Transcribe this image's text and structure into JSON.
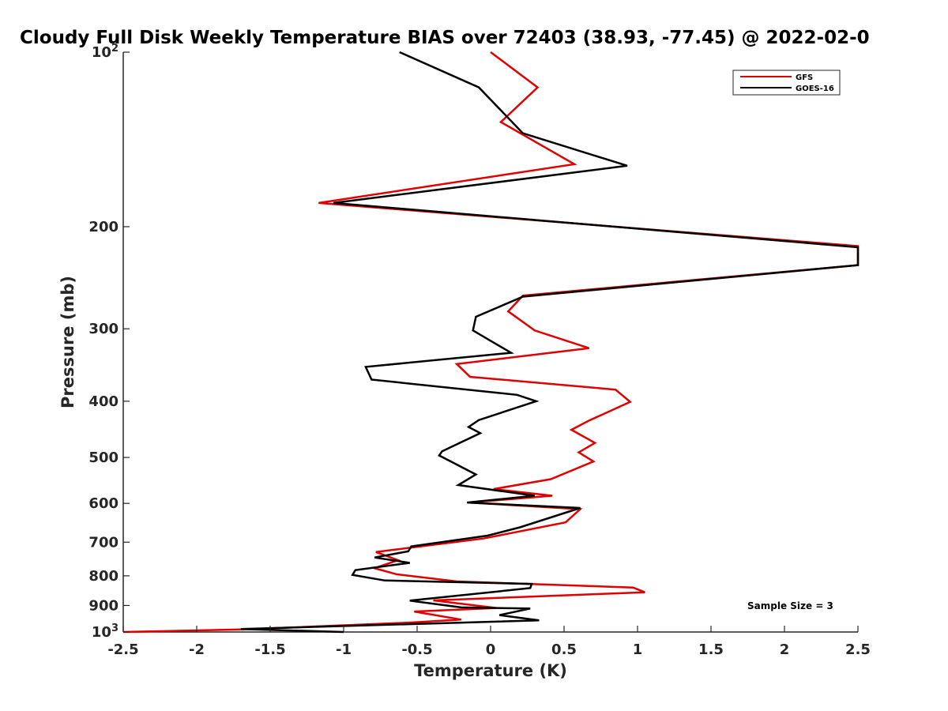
{
  "chart_data": {
    "type": "line",
    "title": "Cloudy Full Disk Weekly Temperature BIAS over 72403 (38.93, -77.45) @ 2022-02-0",
    "xlabel": "Temperature (K)",
    "ylabel": "Pressure (mb)",
    "xlim": [
      -2.5,
      2.5
    ],
    "ylim": [
      100,
      1000
    ],
    "y_scale": "log-reversed",
    "x_ticks": [
      "-2.5",
      "-2",
      "-1.5",
      "-1",
      "-0.5",
      "0",
      "0.5",
      "1",
      "1.5",
      "2",
      "2.5"
    ],
    "y_ticks": [
      {
        "value": 100,
        "label": "10",
        "sup": "2"
      },
      {
        "value": 200,
        "label": "200",
        "sup": ""
      },
      {
        "value": 300,
        "label": "300",
        "sup": ""
      },
      {
        "value": 400,
        "label": "400",
        "sup": ""
      },
      {
        "value": 500,
        "label": "500",
        "sup": ""
      },
      {
        "value": 600,
        "label": "600",
        "sup": ""
      },
      {
        "value": 700,
        "label": "700",
        "sup": ""
      },
      {
        "value": 800,
        "label": "800",
        "sup": ""
      },
      {
        "value": 900,
        "label": "900",
        "sup": ""
      },
      {
        "value": 1000,
        "label": "10",
        "sup": "3"
      }
    ],
    "grid": false,
    "legend_position": "top-right",
    "annotation": "Sample Size = 3",
    "series": [
      {
        "name": "GFS",
        "color": "#e00000",
        "points": [
          [
            0.0,
            100
          ],
          [
            0.32,
            115
          ],
          [
            0.07,
            132
          ],
          [
            0.57,
            156
          ],
          [
            -1.17,
            182
          ],
          [
            2.5,
            216
          ],
          [
            2.5,
            233
          ],
          [
            0.22,
            263
          ],
          [
            0.12,
            280
          ],
          [
            0.3,
            302
          ],
          [
            0.67,
            324
          ],
          [
            -0.23,
            345
          ],
          [
            -0.14,
            363
          ],
          [
            0.85,
            382
          ],
          [
            0.95,
            401
          ],
          [
            0.67,
            432
          ],
          [
            0.55,
            448
          ],
          [
            0.71,
            472
          ],
          [
            0.6,
            490
          ],
          [
            0.7,
            508
          ],
          [
            0.41,
            545
          ],
          [
            0.02,
            567
          ],
          [
            0.42,
            582
          ],
          [
            -0.15,
            598
          ],
          [
            0.61,
            614
          ],
          [
            0.51,
            647
          ],
          [
            -0.05,
            690
          ],
          [
            -0.78,
            728
          ],
          [
            -0.63,
            752
          ],
          [
            -0.79,
            776
          ],
          [
            -0.64,
            795
          ],
          [
            -0.23,
            818
          ],
          [
            0.97,
            838
          ],
          [
            1.05,
            854
          ],
          [
            -0.39,
            882
          ],
          [
            0.04,
            909
          ],
          [
            -0.52,
            922
          ],
          [
            -0.2,
            952
          ],
          [
            -0.54,
            963
          ],
          [
            -1.69,
            990
          ],
          [
            -2.5,
            1000
          ]
        ]
      },
      {
        "name": "GOES-16",
        "color": "#000000",
        "points": [
          [
            -0.62,
            100
          ],
          [
            -0.08,
            115
          ],
          [
            0.22,
            138
          ],
          [
            0.93,
            157
          ],
          [
            -1.07,
            182
          ],
          [
            2.5,
            217
          ],
          [
            2.5,
            233
          ],
          [
            0.22,
            264
          ],
          [
            -0.1,
            286
          ],
          [
            -0.12,
            302
          ],
          [
            0.14,
            330
          ],
          [
            -0.85,
            349
          ],
          [
            -0.81,
            367
          ],
          [
            0.18,
            390
          ],
          [
            0.31,
            400
          ],
          [
            -0.08,
            431
          ],
          [
            -0.15,
            443
          ],
          [
            -0.07,
            454
          ],
          [
            -0.33,
            488
          ],
          [
            -0.35,
            496
          ],
          [
            -0.1,
            535
          ],
          [
            -0.22,
            558
          ],
          [
            0.3,
            582
          ],
          [
            -0.16,
            598
          ],
          [
            0.61,
            611
          ],
          [
            0.2,
            660
          ],
          [
            -0.02,
            682
          ],
          [
            -0.54,
            712
          ],
          [
            -0.56,
            726
          ],
          [
            -0.79,
            744
          ],
          [
            -0.55,
            760
          ],
          [
            -0.92,
            782
          ],
          [
            -0.94,
            797
          ],
          [
            -0.72,
            815
          ],
          [
            0.28,
            826
          ],
          [
            0.27,
            840
          ],
          [
            -0.55,
            883
          ],
          [
            -0.2,
            907
          ],
          [
            0.27,
            911
          ],
          [
            0.06,
            935
          ],
          [
            0.33,
            955
          ],
          [
            -1.7,
            988
          ],
          [
            -1.0,
            1000
          ]
        ]
      }
    ]
  }
}
